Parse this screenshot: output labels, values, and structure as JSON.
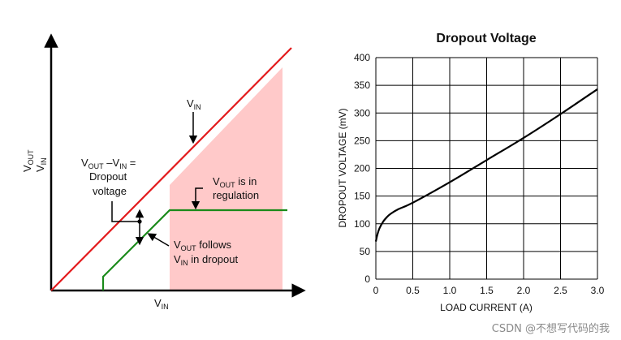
{
  "chart_data": [
    {
      "type": "line",
      "title": "",
      "xlabel": "V_IN",
      "ylabel": "V_OUT / V_IN",
      "series": [
        {
          "name": "V_IN",
          "color": "#e31a1c",
          "x": [
            0,
            10
          ],
          "y": [
            0,
            10
          ]
        },
        {
          "name": "V_OUT",
          "color": "#1a8a1a",
          "x": [
            2.1,
            2.1,
            4.9,
            9.6
          ],
          "y": [
            0,
            0.55,
            3.45,
            3.45
          ]
        }
      ],
      "regions": [
        {
          "name": "regulation",
          "color": "#ffc9c9",
          "x_start": 4.9,
          "x_end": 9.6
        }
      ],
      "labels": {
        "vin_pre": "V",
        "vin_sub": "IN",
        "reg_pre": "V",
        "reg_sub": "OUT",
        "reg_post": " is in",
        "reg_line2": "regulation",
        "drop_pre1": "V",
        "drop_sub1": "OUT",
        "drop_mid": " –V",
        "drop_sub2": "IN",
        "drop_post": " =",
        "drop_line2": "Dropout",
        "drop_line3": "voltage",
        "follow_pre": "V",
        "follow_sub": "OUT",
        "follow_post": " follows",
        "follow_line2_pre": "V",
        "follow_line2_sub": "IN",
        "follow_line2_post": " in dropout",
        "yaxis_pre1": "V",
        "yaxis_sub1": "OUT",
        "yaxis_pre2": "V",
        "yaxis_sub2": "IN",
        "xaxis_pre": "V",
        "xaxis_sub": "IN"
      }
    },
    {
      "type": "line",
      "title": "Dropout Voltage",
      "xlabel": "LOAD CURRENT (A)",
      "ylabel": "DROPOUT VOLTAGE (mV)",
      "xlim": [
        0,
        3.0
      ],
      "ylim": [
        0,
        400
      ],
      "xticks": [
        "0",
        "0.5",
        "1.0",
        "1.5",
        "2.0",
        "2.5",
        "3.0"
      ],
      "yticks": [
        "0",
        "50",
        "100",
        "150",
        "200",
        "250",
        "300",
        "350",
        "400"
      ],
      "grid": true,
      "series": [
        {
          "name": "",
          "color": "#000000",
          "x": [
            0,
            0.02,
            0.05,
            0.1,
            0.15,
            0.2,
            0.3,
            0.5,
            1.0,
            1.5,
            2.0,
            2.5,
            3.0
          ],
          "y": [
            68,
            80,
            92,
            104,
            112,
            118,
            126,
            138,
            175,
            215,
            255,
            298,
            343
          ]
        }
      ]
    }
  ],
  "watermark": "CSDN @不想写代码的我"
}
